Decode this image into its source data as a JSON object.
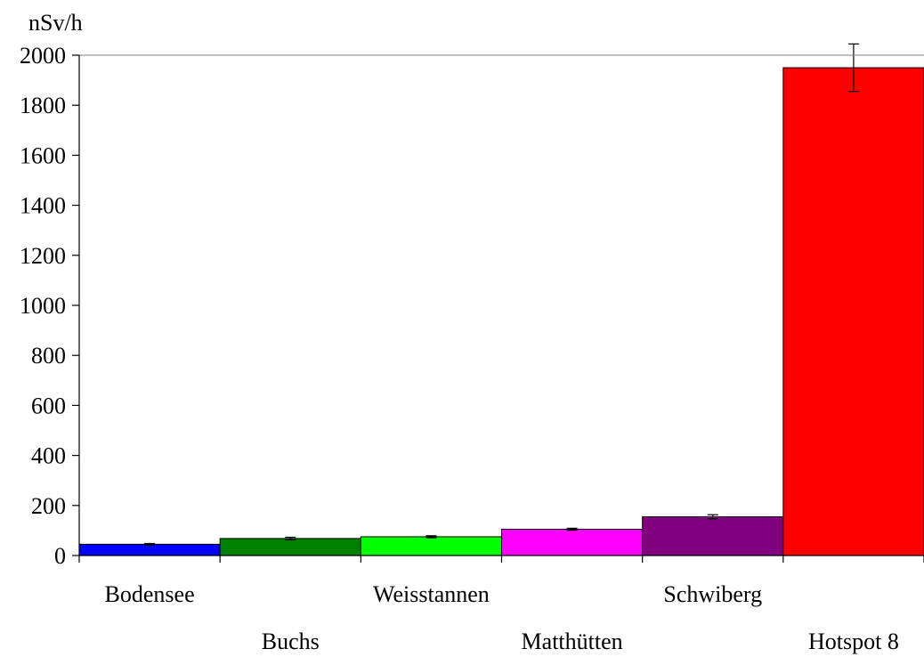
{
  "chart_data": {
    "type": "bar",
    "title": "",
    "ylabel": "nSv/h",
    "xlabel": "",
    "ylim": [
      0,
      2000
    ],
    "yticks": [
      0,
      200,
      400,
      600,
      800,
      1000,
      1200,
      1400,
      1600,
      1800,
      2000
    ],
    "grid": false,
    "categories": [
      "Bodensee",
      "Buchs",
      "Weisstannen",
      "Matthütten",
      "Schwiberg",
      "Hotspot 8"
    ],
    "values": [
      45,
      68,
      75,
      105,
      155,
      1950
    ],
    "errors": [
      3,
      5,
      4,
      4,
      8,
      95
    ],
    "colors": [
      "#0000ff",
      "#008000",
      "#00ff00",
      "#ff00ff",
      "#800080",
      "#ff0000"
    ]
  }
}
